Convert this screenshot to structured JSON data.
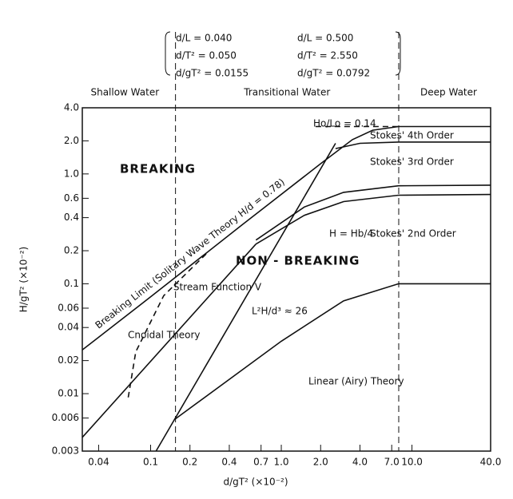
{
  "chart_data": {
    "type": "line",
    "xlabel": "d/gT² (×10⁻²)",
    "ylabel": "H/gT² (×10⁻²)",
    "xscale": "log",
    "yscale": "log",
    "xlim": [
      0.03,
      40
    ],
    "ylim": [
      0.003,
      4
    ],
    "xticks": [
      0.04,
      0.1,
      0.2,
      0.4,
      0.7,
      {
        "value": 1,
        "label": "1.0"
      },
      {
        "value": 2,
        "label": "2.0"
      },
      {
        "value": 4,
        "label": "4.0"
      },
      {
        "value": 7,
        "label": "7.0"
      },
      {
        "value": 10,
        "label": "10.0"
      },
      {
        "value": 40,
        "label": "40.0"
      }
    ],
    "yticks": [
      0.003,
      0.006,
      0.01,
      0.02,
      0.04,
      0.06,
      0.1,
      0.2,
      0.4,
      0.6,
      {
        "value": 1,
        "label": "1.0"
      },
      {
        "value": 2,
        "label": "2.0"
      },
      {
        "value": 4,
        "label": "4.0"
      }
    ],
    "series": [
      {
        "color": "#111111",
        "dashed": false,
        "x": [
          0.03,
          0.1,
          0.5,
          2,
          3.5,
          5,
          7.9,
          40
        ],
        "values": [
          0.025,
          0.076,
          0.343,
          1.24,
          2.05,
          2.5,
          2.7,
          2.7
        ]
      },
      {
        "color": "#111111",
        "dashed": false,
        "x": [
          2.6,
          4,
          7.9,
          40
        ],
        "values": [
          1.7,
          1.9,
          1.95,
          1.95
        ]
      },
      {
        "color": "#111111",
        "dashed": false,
        "x": [
          0.64,
          1.5,
          3,
          7.9,
          40
        ],
        "values": [
          0.25,
          0.5,
          0.68,
          0.78,
          0.79
        ]
      },
      {
        "color": "#111111",
        "dashed": false,
        "x": [
          0.64,
          1.5,
          3,
          7.9,
          40
        ],
        "values": [
          0.23,
          0.42,
          0.56,
          0.64,
          0.65
        ]
      },
      {
        "color": "#111111",
        "dashed": false,
        "x": [
          0.03,
          0.64
        ],
        "values": [
          0.004,
          0.23
        ]
      },
      {
        "color": "#111111",
        "dashed": false,
        "x": [
          0.152,
          1,
          3,
          7.9,
          40
        ],
        "values": [
          0.0058,
          0.03,
          0.07,
          0.1,
          0.1
        ]
      },
      {
        "color": "#111111",
        "dashed": false,
        "x": [
          0.11,
          2.6
        ],
        "values": [
          0.003,
          1.9
        ]
      },
      {
        "color": "#111111",
        "dashed": true,
        "x": [
          0.266,
          0.126,
          0.077,
          0.067
        ],
        "values": [
          0.187,
          0.078,
          0.024,
          0.0089
        ]
      },
      {
        "color": "#111111",
        "dashed": true,
        "x": [
          1.83,
          7.9
        ],
        "values": [
          2.7,
          2.7
        ]
      }
    ],
    "boundaries": [
      0.155,
      7.92
    ],
    "regions": [
      "Shallow Water",
      "Transitional Water",
      "Deep Water"
    ],
    "limits": [
      [
        "d/L = 0.040",
        "d/T² = 0.050",
        "d/gT² = 0.0155"
      ],
      [
        "d/L = 0.500",
        "d/T² = 2.550",
        "d/gT² = 0.0792"
      ]
    ],
    "annotations": [
      "BREAKING",
      "NON - BREAKING",
      "Stokes' 4th Order",
      "Stokes' 3rd Order",
      "Stokes' 2nd Order",
      "Linear (Airy) Theory",
      "Cnoidal Theory",
      "Stream Function V",
      "Breaking Limit (Solitary Wave Theory H/d = 0.78)",
      "H = Hb/4",
      "L²H/d³ ≈ 26",
      "Ho/Lo = 0.14"
    ]
  }
}
